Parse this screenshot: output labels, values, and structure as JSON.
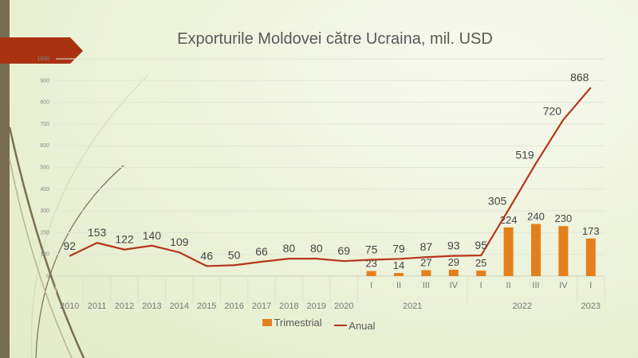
{
  "slide": {
    "title": "Exporturile Moldovei către Ucraina, mil. USD"
  },
  "colors": {
    "bar": "#e3801c",
    "line": "#b5361b",
    "banner": "#a93213",
    "strip": "#786c52"
  },
  "chart_data": {
    "type": "bar+line",
    "title": "Exporturile Moldovei către Ucraina, mil. USD",
    "ylim": [
      0,
      1000
    ],
    "yticks": [
      0,
      100,
      200,
      300,
      400,
      500,
      600,
      700,
      800,
      900,
      1000
    ],
    "grid": true,
    "legend_position": "bottom",
    "categories": [
      "2010",
      "2011",
      "2012",
      "2013",
      "2014",
      "2015",
      "2016",
      "2017",
      "2018",
      "2019",
      "2020",
      "I",
      "II",
      "III",
      "IV",
      "I",
      "II",
      "III",
      "IV",
      "I"
    ],
    "groups": [
      {
        "label": "2021",
        "start": 11,
        "count": 4
      },
      {
        "label": "2022",
        "start": 15,
        "count": 4
      },
      {
        "label": "2023",
        "start": 19,
        "count": 1
      }
    ],
    "series": [
      {
        "name": "Trimestrial",
        "kind": "bar",
        "values": [
          null,
          null,
          null,
          null,
          null,
          null,
          null,
          null,
          null,
          null,
          null,
          23,
          14,
          27,
          29,
          25,
          224,
          240,
          230,
          173
        ]
      },
      {
        "name": "Anual",
        "kind": "line",
        "values": [
          92,
          153,
          122,
          140,
          109,
          46,
          50,
          66,
          80,
          80,
          69,
          75,
          79,
          87,
          93,
          95,
          305,
          519,
          720,
          868
        ]
      }
    ]
  }
}
